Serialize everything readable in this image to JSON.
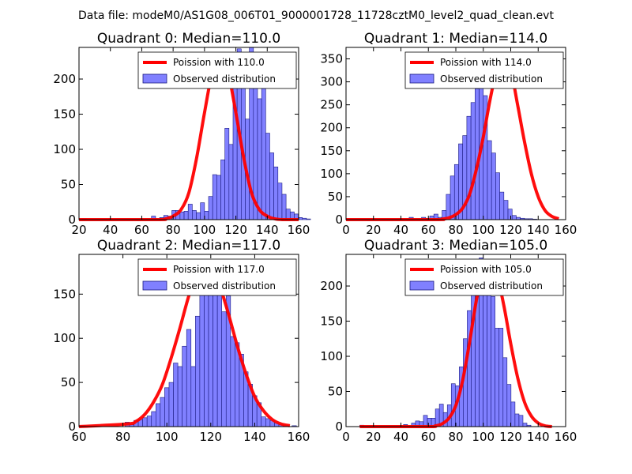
{
  "figure": {
    "suptitle": "Data file: modeM0/AS1G08_006T01_9000001728_11728cztM0_level2_quad_clean.evt"
  },
  "colors": {
    "bar_fill": "#8080ff",
    "bar_stroke": "#1a1a80",
    "poisson_line": "#ff0000"
  },
  "chart_data": [
    {
      "type": "bar",
      "title": "Quadrant 0: Median=110.0",
      "xlim": [
        20,
        160
      ],
      "ylim": [
        0,
        245
      ],
      "xticks": [
        20,
        40,
        60,
        80,
        100,
        120,
        140,
        160
      ],
      "yticks": [
        0,
        50,
        100,
        150,
        200
      ],
      "legend_position": "top-right",
      "poisson_label": "Poission with 110.0",
      "observed_label": "Observed distribution",
      "median": 110,
      "poisson_peak": 234,
      "bin_start": 22,
      "bin_width": 2.6,
      "values": [
        1,
        0,
        0,
        0,
        0,
        0,
        0,
        0,
        0,
        0,
        0,
        0,
        0,
        0,
        0,
        0,
        0,
        5,
        0,
        3,
        6,
        5,
        13,
        13,
        11,
        12,
        22,
        13,
        10,
        24,
        12,
        33,
        64,
        63,
        85,
        130,
        107,
        222,
        243,
        206,
        143,
        245,
        203,
        172,
        200,
        123,
        95,
        75,
        52,
        36,
        15,
        11,
        8,
        3,
        2,
        1
      ],
      "poisson_x": [
        20,
        70,
        75,
        80,
        85,
        90,
        95,
        100,
        105,
        110,
        115,
        120,
        125,
        130,
        135,
        140,
        145,
        150,
        160
      ],
      "poisson_y": [
        0,
        0,
        1,
        5,
        14,
        38,
        88,
        152,
        210,
        234,
        210,
        152,
        88,
        38,
        14,
        5,
        1,
        0,
        0
      ]
    },
    {
      "type": "bar",
      "title": "Quadrant 1: Median=114.0",
      "xlim": [
        0,
        160
      ],
      "ylim": [
        0,
        375
      ],
      "xticks": [
        0,
        20,
        40,
        60,
        80,
        100,
        120,
        140,
        160
      ],
      "yticks": [
        0,
        50,
        100,
        150,
        200,
        250,
        300,
        350
      ],
      "legend_position": "top-right",
      "poisson_label": "Poission with 114.0",
      "observed_label": "Observed distribution",
      "median": 114,
      "poisson_peak": 355,
      "bin_start": 4,
      "bin_width": 3,
      "values": [
        0,
        0,
        0,
        0,
        0,
        0,
        0,
        0,
        0,
        0,
        0,
        0,
        0,
        0,
        5,
        0,
        0,
        5,
        3,
        8,
        12,
        5,
        20,
        55,
        95,
        120,
        165,
        183,
        225,
        255,
        285,
        303,
        270,
        172,
        145,
        102,
        60,
        42,
        23,
        9,
        5,
        3,
        2,
        2,
        1,
        0,
        0,
        0,
        0,
        0,
        0
      ],
      "poisson_x": [
        0,
        65,
        70,
        75,
        80,
        85,
        90,
        95,
        100,
        105,
        110,
        114,
        120,
        125,
        130,
        135,
        140,
        145,
        150,
        155
      ],
      "poisson_y": [
        0,
        0,
        1,
        4,
        11,
        25,
        55,
        110,
        180,
        262,
        330,
        355,
        325,
        250,
        170,
        100,
        50,
        20,
        7,
        2
      ]
    },
    {
      "type": "bar",
      "title": "Quadrant 2: Median=117.0",
      "xlim": [
        60,
        160
      ],
      "ylim": [
        0,
        195
      ],
      "xticks": [
        60,
        80,
        100,
        120,
        140,
        160
      ],
      "yticks": [
        0,
        50,
        100,
        150
      ],
      "legend_position": "top-right",
      "poisson_label": "Poission with 117.0",
      "observed_label": "Observed distribution",
      "median": 117,
      "poisson_peak": 185,
      "bin_start": 61,
      "bin_width": 2,
      "values": [
        1,
        0,
        0,
        0,
        0,
        0,
        0,
        0,
        0,
        0,
        5,
        2,
        7,
        8,
        10,
        12,
        17,
        26,
        33,
        44,
        50,
        72,
        68,
        91,
        110,
        68,
        125,
        162,
        160,
        185,
        162,
        158,
        130,
        148,
        102,
        95,
        82,
        62,
        48,
        35,
        27,
        11,
        9,
        7,
        4,
        2,
        1,
        0,
        1,
        0
      ],
      "poisson_x": [
        60,
        82,
        86,
        90,
        94,
        98,
        102,
        106,
        110,
        114,
        117,
        120,
        124,
        128,
        132,
        136,
        140,
        144,
        148,
        152,
        156
      ],
      "poisson_y": [
        0,
        3,
        6,
        14,
        28,
        48,
        78,
        112,
        148,
        176,
        185,
        182,
        160,
        128,
        92,
        60,
        34,
        18,
        8,
        3,
        1
      ]
    },
    {
      "type": "bar",
      "title": "Quadrant 3: Median=105.0",
      "xlim": [
        0,
        160
      ],
      "ylim": [
        0,
        245
      ],
      "xticks": [
        0,
        20,
        40,
        60,
        80,
        100,
        120,
        140,
        160
      ],
      "yticks": [
        0,
        50,
        100,
        150,
        200
      ],
      "legend_position": "top-right",
      "poisson_label": "Poission with 105.0",
      "observed_label": "Observed distribution",
      "median": 105,
      "poisson_peak": 232,
      "bin_start": 10,
      "bin_width": 2.9,
      "values": [
        2,
        0,
        0,
        0,
        0,
        0,
        0,
        0,
        0,
        0,
        0,
        3,
        0,
        5,
        8,
        7,
        16,
        12,
        12,
        25,
        32,
        20,
        31,
        61,
        58,
        85,
        125,
        165,
        230,
        235,
        240,
        233,
        220,
        185,
        140,
        140,
        98,
        60,
        35,
        18,
        16,
        5,
        2,
        0,
        0,
        0,
        0,
        0,
        0
      ],
      "poisson_x": [
        10,
        60,
        65,
        70,
        75,
        80,
        85,
        90,
        95,
        100,
        105,
        110,
        115,
        120,
        125,
        130,
        135,
        140,
        145,
        150
      ],
      "poisson_y": [
        0,
        0,
        1,
        4,
        12,
        30,
        66,
        120,
        180,
        222,
        232,
        215,
        172,
        118,
        70,
        35,
        15,
        5,
        1,
        0
      ]
    }
  ]
}
